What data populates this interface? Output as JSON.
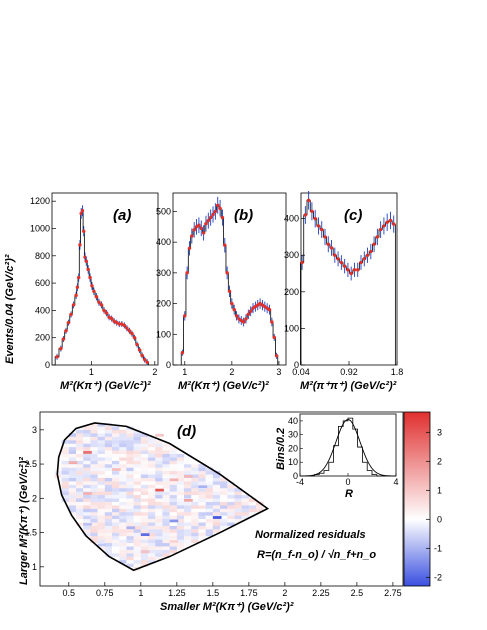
{
  "chart_data": [
    {
      "type": "scatter",
      "panel": "a",
      "label": "(a)",
      "ylabel": "Events/0.04 (GeV/c²)²",
      "xlabel": "M²(Kπ⁺) (GeV/c²)²",
      "xlim": [
        0.38,
        2.05
      ],
      "ylim": [
        0,
        1260
      ],
      "xticks": [
        {
          "v": 1,
          "label": "1"
        },
        {
          "v": 2,
          "label": "2"
        }
      ],
      "yticks": [
        0,
        200,
        400,
        600,
        800,
        1000,
        1200
      ],
      "data": {
        "x": [
          0.46,
          0.52,
          0.56,
          0.6,
          0.64,
          0.68,
          0.72,
          0.76,
          0.78,
          0.8,
          0.82,
          0.84,
          0.86,
          0.88,
          0.9,
          0.92,
          0.95,
          0.98,
          1.01,
          1.04,
          1.08,
          1.12,
          1.16,
          1.2,
          1.24,
          1.28,
          1.32,
          1.36,
          1.4,
          1.44,
          1.48,
          1.52,
          1.56,
          1.6,
          1.64,
          1.68,
          1.72,
          1.76,
          1.8,
          1.84,
          1.88
        ],
        "y": [
          60,
          120,
          190,
          250,
          310,
          370,
          440,
          510,
          570,
          640,
          880,
          1110,
          1130,
          980,
          790,
          760,
          700,
          640,
          580,
          540,
          500,
          460,
          440,
          400,
          380,
          350,
          340,
          320,
          310,
          300,
          300,
          290,
          270,
          250,
          230,
          200,
          150,
          110,
          70,
          40,
          20
        ]
      }
    },
    {
      "type": "scatter",
      "panel": "b",
      "label": "(b)",
      "xlabel": "M²(Kπ⁺) (GeV/c²)²",
      "xlim": [
        0.75,
        3.15
      ],
      "ylim": [
        0,
        560
      ],
      "xticks": [
        {
          "v": 1,
          "label": "1"
        },
        {
          "v": 2,
          "label": "2"
        },
        {
          "v": 3,
          "label": "3"
        }
      ],
      "yticks": [
        0,
        100,
        200,
        300,
        400,
        500
      ],
      "data": {
        "x": [
          0.95,
          1.0,
          1.05,
          1.1,
          1.15,
          1.2,
          1.25,
          1.3,
          1.35,
          1.4,
          1.45,
          1.5,
          1.55,
          1.6,
          1.65,
          1.7,
          1.75,
          1.8,
          1.85,
          1.9,
          1.95,
          2.0,
          2.05,
          2.1,
          2.15,
          2.2,
          2.25,
          2.3,
          2.35,
          2.4,
          2.45,
          2.5,
          2.55,
          2.6,
          2.65,
          2.7,
          2.75,
          2.8,
          2.85,
          2.9,
          2.95
        ],
        "y": [
          40,
          160,
          300,
          380,
          420,
          440,
          450,
          455,
          445,
          430,
          460,
          470,
          480,
          490,
          500,
          520,
          510,
          480,
          390,
          300,
          240,
          200,
          180,
          160,
          150,
          145,
          140,
          150,
          165,
          175,
          185,
          190,
          195,
          200,
          195,
          190,
          185,
          180,
          140,
          90,
          30
        ]
      }
    },
    {
      "type": "scatter",
      "panel": "c",
      "label": "(c)",
      "xlabel": "M²(π⁺π⁺) (GeV/c²)²",
      "xlim": [
        0.04,
        1.8
      ],
      "ylim": [
        0,
        470
      ],
      "xticks": [
        {
          "v": 0.04,
          "label": "0.04"
        },
        {
          "v": 0.92,
          "label": "0.92"
        },
        {
          "v": 1.8,
          "label": "1.8"
        }
      ],
      "yticks": [
        0,
        100,
        200,
        300,
        400
      ],
      "data": {
        "x": [
          0.06,
          0.12,
          0.18,
          0.24,
          0.3,
          0.36,
          0.42,
          0.48,
          0.54,
          0.6,
          0.66,
          0.72,
          0.78,
          0.84,
          0.9,
          0.96,
          1.02,
          1.08,
          1.14,
          1.2,
          1.26,
          1.32,
          1.38,
          1.44,
          1.5,
          1.56,
          1.62,
          1.68,
          1.74
        ],
        "y": [
          280,
          410,
          450,
          420,
          400,
          380,
          370,
          350,
          330,
          320,
          300,
          290,
          280,
          270,
          260,
          250,
          260,
          260,
          280,
          290,
          300,
          310,
          330,
          350,
          370,
          380,
          390,
          395,
          385
        ]
      }
    },
    {
      "type": "heatmap",
      "panel": "d",
      "label": "(d)",
      "xlabel": "Smaller M²(Kπ⁺) (GeV/c²)²",
      "ylabel": "Larger M²(Kπ⁺) (GeV/c²)²",
      "xlim": [
        0.3,
        2.82
      ],
      "ylim": [
        0.72,
        3.26
      ],
      "xticks": [
        {
          "v": 0.5,
          "label": "0.5"
        },
        {
          "v": 0.75,
          "label": "0.75"
        },
        {
          "v": 1,
          "label": "1"
        },
        {
          "v": 1.25,
          "label": "1.25"
        },
        {
          "v": 1.5,
          "label": "1.5"
        },
        {
          "v": 1.75,
          "label": "1.75"
        },
        {
          "v": 2,
          "label": "2"
        },
        {
          "v": 2.25,
          "label": "2.25"
        },
        {
          "v": 2.5,
          "label": "2.5"
        },
        {
          "v": 2.75,
          "label": "2.75"
        }
      ],
      "yticks": [
        {
          "v": 1,
          "label": "1"
        },
        {
          "v": 1.5,
          "label": "1.5"
        },
        {
          "v": 2,
          "label": "2"
        },
        {
          "v": 2.5,
          "label": "2.5"
        },
        {
          "v": 3,
          "label": "3"
        }
      ],
      "colorbar": {
        "min": -2.3,
        "max": 3.7,
        "ticks": [
          -2,
          -1,
          0,
          1,
          2,
          3
        ]
      },
      "boundary": {
        "x": [
          0.95,
          0.78,
          0.62,
          0.52,
          0.45,
          0.42,
          0.43,
          0.47,
          0.55,
          0.68,
          0.9,
          1.2,
          1.55,
          1.88,
          1.55,
          1.2,
          0.95
        ],
        "y": [
          0.95,
          1.15,
          1.45,
          1.75,
          2.05,
          2.35,
          2.6,
          2.85,
          3.02,
          3.1,
          3.05,
          2.8,
          2.35,
          1.85,
          1.5,
          1.15,
          0.95
        ]
      },
      "cells": {
        "x": [
          0.6,
          0.5,
          0.8,
          1.1,
          1.2,
          0.6,
          1.3,
          1.5,
          1.2,
          1.0,
          0.9,
          0.6,
          1.1,
          1.3,
          1.4,
          0.7,
          1.0,
          1.2
        ],
        "y": [
          2.65,
          2.5,
          2.4,
          2.1,
          2.25,
          2.05,
          1.95,
          1.7,
          1.65,
          1.45,
          1.55,
          1.6,
          2.9,
          2.3,
          2.15,
          1.3,
          1.2,
          1.35
        ],
        "v": [
          2.6,
          1.5,
          1.2,
          3.0,
          1.4,
          1.4,
          1.6,
          -2.2,
          -1.4,
          -1.9,
          -1.0,
          -0.8,
          1.0,
          1.3,
          -1.0,
          -0.7,
          1.1,
          0.8
        ]
      },
      "inset": {
        "type": "histogram",
        "xlabel": "R",
        "ylabel": "Bins/0.2",
        "xlim": [
          -4,
          4
        ],
        "ylim": [
          0,
          45
        ],
        "xticks": [
          -4,
          0,
          4
        ],
        "yticks": [
          0,
          10,
          20,
          30,
          40
        ],
        "x": [
          -3.0,
          -2.6,
          -2.2,
          -1.8,
          -1.4,
          -1.0,
          -0.6,
          -0.2,
          0.2,
          0.6,
          1.0,
          1.4,
          1.8,
          2.2,
          2.6,
          3.0
        ],
        "y": [
          0,
          1,
          2,
          4,
          10,
          22,
          36,
          40,
          42,
          34,
          21,
          10,
          4,
          1,
          0,
          0
        ],
        "curve_sigma": 1.0,
        "curve_peak": 41
      },
      "annotation_title": "Normalized residuals",
      "annotation_formula": "R=(n_f-n_o) / √(n_f+n_o)"
    }
  ],
  "labels": {
    "a": "(a)",
    "b": "(b)",
    "c": "(c)",
    "d": "(d)",
    "ylabel_top": "Events/0.04 (GeV/c²)²",
    "xlabel_a": "M²(Kπ⁺) (GeV/c²)²",
    "xlabel_b": "M²(Kπ⁺) (GeV/c²)²",
    "xlabel_c": "M²(π⁺π⁺) (GeV/c²)²",
    "xlabel_d": "Smaller M²(Kπ⁺) (GeV/c²)²",
    "ylabel_d": "Larger M²(Kπ⁺) (GeV/c²)²",
    "inset_xlabel": "R",
    "inset_ylabel": "Bins/0.2",
    "residuals_title": "Normalized residuals",
    "residuals_formula": "R=(n_f-n_o) / √n_f+n_o"
  },
  "colors": {
    "fit_line": "#000000",
    "point": "#e0302a",
    "error": "#1c3fbf",
    "positive": "#e03030",
    "negative": "#3a4fe0"
  }
}
